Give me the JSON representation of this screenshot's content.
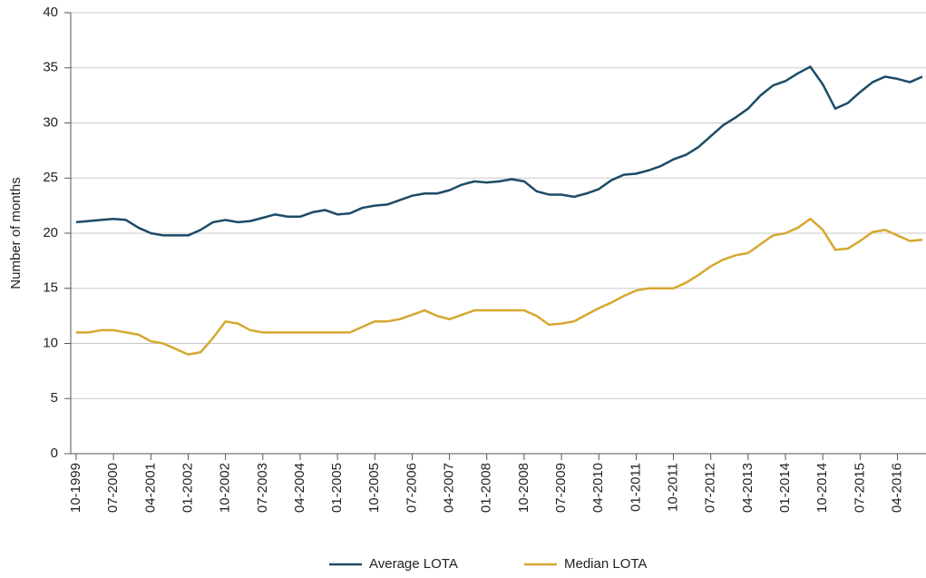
{
  "chart_data": {
    "type": "line",
    "y_label": "Number of months",
    "categories": [
      "10-1999",
      null,
      null,
      "07-2000",
      null,
      null,
      "04-2001",
      null,
      null,
      "01-2002",
      null,
      null,
      "10-2002",
      null,
      null,
      "07-2003",
      null,
      null,
      "04-2004",
      null,
      null,
      "01-2005",
      null,
      null,
      "10-2005",
      null,
      null,
      "07-2006",
      null,
      null,
      "04-2007",
      null,
      null,
      "01-2008",
      null,
      null,
      "10-2008",
      null,
      null,
      "07-2009",
      null,
      null,
      "04-2010",
      null,
      null,
      "01-2011",
      null,
      null,
      "10-2011",
      null,
      null,
      "07-2012",
      null,
      null,
      "04-2013",
      null,
      null,
      "01-2014",
      null,
      null,
      "10-2014",
      null,
      null,
      "07-2015",
      null,
      null,
      "04-2016",
      null,
      null
    ],
    "series": [
      {
        "name": "Average LOTA",
        "color": "#1d4b66",
        "values": [
          21,
          21.1,
          21.2,
          21.3,
          21.2,
          20.5,
          20,
          19.8,
          19.8,
          19.8,
          20.3,
          21,
          21.2,
          21,
          21.1,
          21.4,
          21.7,
          21.5,
          21.5,
          21.9,
          22.1,
          21.7,
          21.8,
          22.3,
          22.5,
          22.6,
          23,
          23.4,
          23.6,
          23.6,
          23.9,
          24.4,
          24.7,
          24.6,
          24.7,
          24.9,
          24.7,
          23.8,
          23.5,
          23.5,
          23.3,
          23.6,
          24,
          24.8,
          25.3,
          25.4,
          25.7,
          26.1,
          26.7,
          27.1,
          27.8,
          28.8,
          29.8,
          30.5,
          31.3,
          32.5,
          33.4,
          33.8,
          34.5,
          35.1,
          33.5,
          31.3,
          31.8,
          32.8,
          33.7,
          34.2,
          34,
          33.7,
          34.2
        ]
      },
      {
        "name": "Median LOTA",
        "color": "#d6a830",
        "values": [
          11,
          11,
          11.2,
          11.2,
          11,
          10.8,
          10.2,
          10,
          9.5,
          9,
          9.2,
          10.5,
          12,
          11.8,
          11.2,
          11,
          11,
          11,
          11,
          11,
          11,
          11,
          11,
          11.5,
          12,
          12,
          12.2,
          12.6,
          13,
          12.5,
          12.2,
          12.6,
          13,
          13,
          13,
          13,
          13,
          12.5,
          11.7,
          11.8,
          12,
          12.6,
          13.2,
          13.7,
          14.3,
          14.8,
          15,
          15,
          15,
          15.5,
          16.2,
          17,
          17.6,
          18,
          18.2,
          19,
          19.8,
          20,
          20.5,
          21.3,
          20.3,
          18.5,
          18.6,
          19.3,
          20.1,
          20.3,
          19.8,
          19.3,
          19.4
        ]
      }
    ],
    "ylim": [
      0,
      40
    ],
    "yticks": [
      0,
      5,
      10,
      15,
      20,
      25,
      30,
      35,
      40
    ],
    "grid": true,
    "legend": "bottom"
  }
}
